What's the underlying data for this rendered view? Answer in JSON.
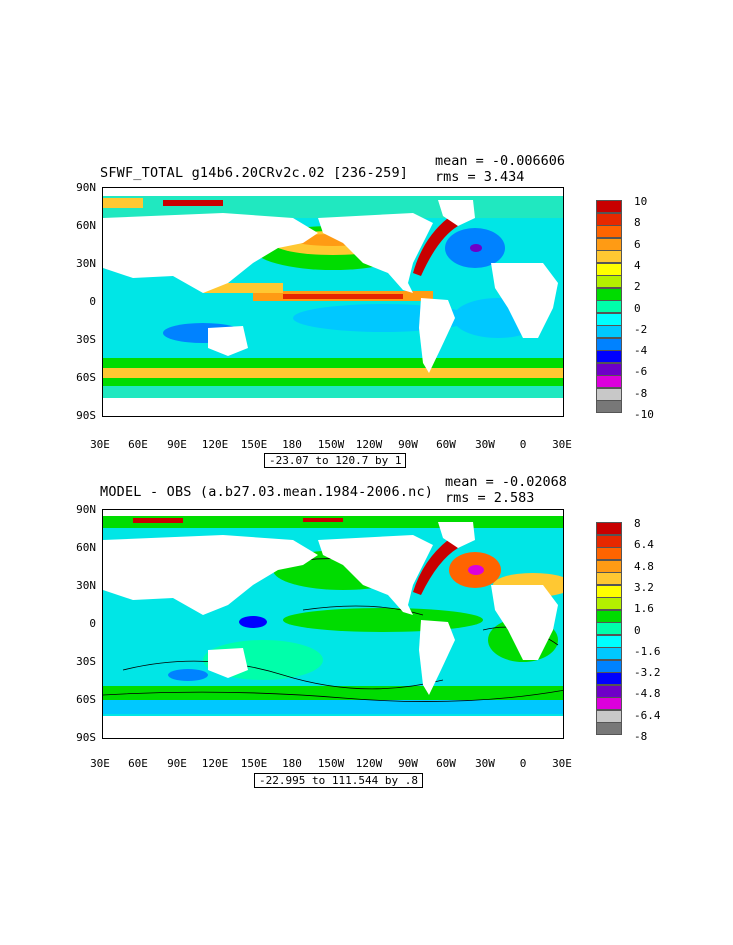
{
  "panels": [
    {
      "id": "top",
      "title": "SFWF_TOTAL g14b6.20CRv2c.02 [236-259]",
      "mean_label": "mean = -0.006606",
      "rms_label": "rms = 3.434",
      "contour_info": "-23.07 to 120.7 by 1",
      "lat_labels": [
        "90N",
        "60N",
        "30N",
        "0",
        "30S",
        "60S",
        "90S"
      ],
      "lon_labels": [
        "30E",
        "60E",
        "90E",
        "120E",
        "150E",
        "180",
        "150W",
        "120W",
        "90W",
        "60W",
        "30W",
        "0",
        "30E"
      ],
      "legend_labels": [
        "10",
        "8",
        "6",
        "4",
        "2",
        "0",
        "-2",
        "-4",
        "-6",
        "-8",
        "-10"
      ],
      "legend_colors": [
        "#c80000",
        "#e62800",
        "#ff6400",
        "#ff9b14",
        "#ffc832",
        "#ffff00",
        "#b4f000",
        "#00dc00",
        "#00ffaa",
        "#00ffff",
        "#00c8ff",
        "#0082ff",
        "#0000ff",
        "#6e00c8",
        "#dc00dc",
        "#c8c8c8",
        "#787878"
      ]
    },
    {
      "id": "bottom",
      "title": "MODEL - OBS (a.b27.03.mean.1984-2006.nc)",
      "mean_label": "mean = -0.02068",
      "rms_label": "rms = 2.583",
      "contour_info": "-22.995 to 111.544 by .8",
      "lat_labels": [
        "90N",
        "60N",
        "30N",
        "0",
        "30S",
        "60S",
        "90S"
      ],
      "lon_labels": [
        "30E",
        "60E",
        "90E",
        "120E",
        "150E",
        "180",
        "150W",
        "120W",
        "90W",
        "60W",
        "30W",
        "0",
        "30E"
      ],
      "legend_labels": [
        "8",
        "6.4",
        "4.8",
        "3.2",
        "1.6",
        "0",
        "-1.6",
        "-3.2",
        "-4.8",
        "-6.4",
        "-8"
      ],
      "legend_colors": [
        "#c80000",
        "#e62800",
        "#ff6400",
        "#ff9b14",
        "#ffc832",
        "#ffff00",
        "#b4f000",
        "#00dc00",
        "#00ffaa",
        "#00ffff",
        "#00c8ff",
        "#0082ff",
        "#0000ff",
        "#6e00c8",
        "#dc00dc",
        "#c8c8c8",
        "#787878"
      ]
    }
  ]
}
